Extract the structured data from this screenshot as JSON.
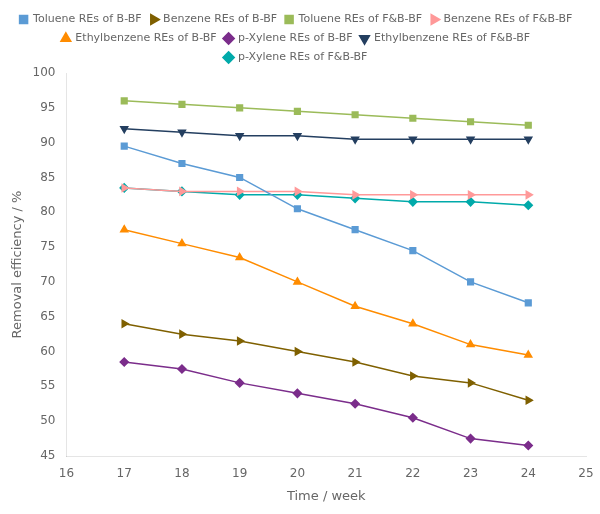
{
  "chart_data": {
    "type": "line",
    "x": [
      17,
      18,
      19,
      20,
      21,
      22,
      23,
      24
    ],
    "series": [
      {
        "name": "Toluene REs of B-BF",
        "color": "#5B9BD5",
        "marker": "square",
        "values": [
          89.5,
          87.0,
          85.0,
          80.5,
          77.5,
          74.5,
          70.0,
          67.0
        ]
      },
      {
        "name": "Benzene REs of B-BF",
        "color": "#7F6000",
        "marker": "tri_right",
        "values": [
          64.0,
          62.5,
          61.5,
          60.0,
          58.5,
          56.5,
          55.5,
          53.0
        ]
      },
      {
        "name": "Toluene REs of F&B-BF",
        "color": "#9BBB59",
        "marker": "square",
        "values": [
          96.0,
          95.5,
          95.0,
          94.5,
          94.0,
          93.5,
          93.0,
          92.5
        ]
      },
      {
        "name": "Benzene REs of F&B-BF",
        "color": "#FF9999",
        "marker": "tri_right",
        "values": [
          83.5,
          83.0,
          83.0,
          83.0,
          82.5,
          82.5,
          82.5,
          82.5
        ]
      },
      {
        "name": "Ethylbenzene REs of B-BF",
        "color": "#FF8C00",
        "marker": "triangle_up",
        "values": [
          77.5,
          75.5,
          73.5,
          70.0,
          66.5,
          64.0,
          61.0,
          59.5
        ]
      },
      {
        "name": "p-Xylene REs of B-BF",
        "color": "#7B2D8B",
        "marker": "diamond",
        "values": [
          58.5,
          57.5,
          55.5,
          54.0,
          52.5,
          50.5,
          47.5,
          46.5
        ]
      },
      {
        "name": "Ethylbenzene REs of F&B-BF",
        "color": "#243F60",
        "marker": "triangle_down",
        "values": [
          92.0,
          91.5,
          91.0,
          91.0,
          90.5,
          90.5,
          90.5,
          90.5
        ]
      },
      {
        "name": "p-Xylene REs of F&B-BF",
        "color": "#00AAAA",
        "marker": "diamond",
        "values": [
          83.5,
          83.0,
          82.5,
          82.5,
          82.0,
          81.5,
          81.5,
          81.0
        ]
      }
    ],
    "xlabel": "Time / week",
    "ylabel": "Removal efficiency / %",
    "xlim": [
      16,
      25
    ],
    "ylim": [
      45,
      100
    ],
    "xticks": [
      16,
      17,
      18,
      19,
      20,
      21,
      22,
      23,
      24,
      25
    ],
    "yticks": [
      45,
      50,
      55,
      60,
      65,
      70,
      75,
      80,
      85,
      90,
      95,
      100
    ],
    "grid": false,
    "legend": "top"
  }
}
